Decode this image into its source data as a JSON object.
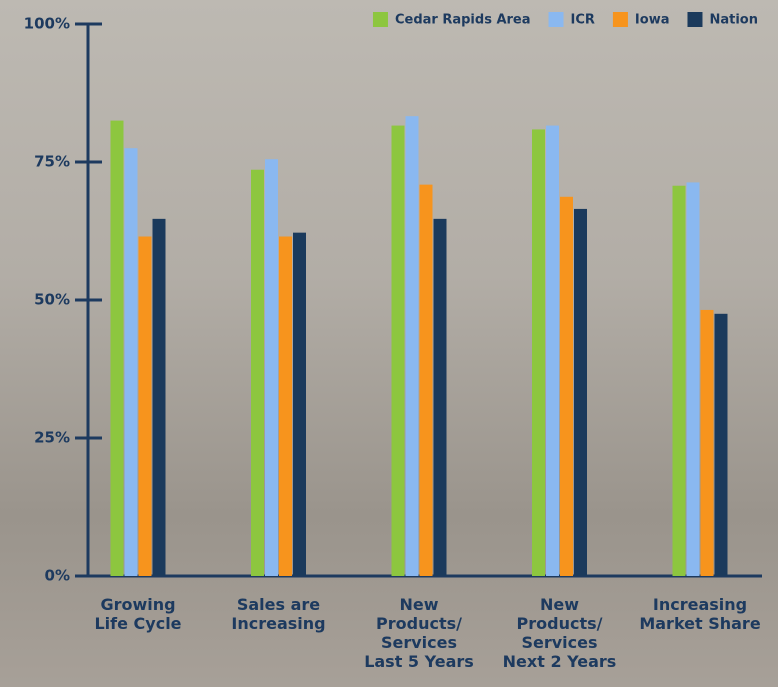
{
  "chart_data": {
    "type": "bar",
    "categories": [
      "Growing\nLife Cycle",
      "Sales are\nIncreasing",
      "New\nProducts/\nServices\nLast 5 Years",
      "New\nProducts/\nServices\nNext 2 Years",
      "Increasing\nMarket Share"
    ],
    "series": [
      {
        "name": "Cedar Rapids Area",
        "color": "#8dc63f",
        "values": [
          82.5,
          73.6,
          81.6,
          80.9,
          70.7
        ]
      },
      {
        "name": "ICR",
        "color": "#8ab8f0",
        "values": [
          77.5,
          75.5,
          83.3,
          81.6,
          71.3
        ]
      },
      {
        "name": "Iowa",
        "color": "#f7941d",
        "values": [
          61.5,
          61.5,
          70.9,
          68.7,
          48.2
        ]
      },
      {
        "name": "Nation",
        "color": "#1b3a5c",
        "values": [
          64.7,
          62.2,
          64.7,
          66.5,
          47.5
        ]
      }
    ],
    "ylim": [
      0,
      100
    ],
    "yticks": [
      {
        "value": 0,
        "label": "0%"
      },
      {
        "value": 25,
        "label": "25%"
      },
      {
        "value": 50,
        "label": "50%"
      },
      {
        "value": 75,
        "label": "75%"
      },
      {
        "value": 100,
        "label": "100%"
      }
    ],
    "legend": "top-right"
  }
}
